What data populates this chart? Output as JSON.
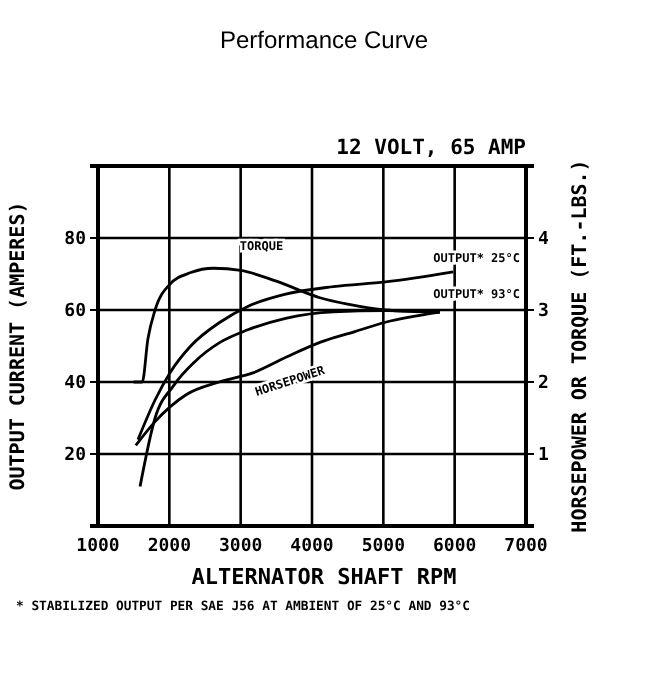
{
  "chart_data": {
    "type": "line",
    "title": "Performance Curve",
    "subtitle": "12 VOLT, 65 AMP",
    "xlabel": "ALTERNATOR SHAFT RPM",
    "ylabel": "OUTPUT CURRENT (AMPERES)",
    "y2label": "HORSEPOWER OR TORQUE (FT.-LBS.)",
    "annotations": [
      "* STABILIZED OUTPUT PER SAE J56 AT AMBIENT OF 25°C AND 93°C"
    ],
    "xlim": [
      1000,
      7000
    ],
    "xticks": [
      1000,
      2000,
      3000,
      4000,
      5000,
      6000,
      7000
    ],
    "ylim": [
      0,
      100
    ],
    "yticks": [
      {
        "value": 0,
        "label": null
      },
      20,
      40,
      60,
      80,
      {
        "value": 100,
        "label": null
      }
    ],
    "y2lim": [
      0,
      5
    ],
    "y2ticks": [
      1,
      2,
      3,
      4
    ],
    "grid": true,
    "marker": "none",
    "line_style": "solid",
    "series": [
      {
        "name": "TORQUE",
        "color": "#000000",
        "axis": "y2",
        "x": [
          1500,
          1620,
          1700,
          1800,
          2000,
          2300,
          2620,
          3000,
          3500,
          4110,
          4500,
          5030,
          5790
        ],
        "values": [
          2.0,
          2.0,
          2.6,
          3.0,
          3.35,
          3.52,
          3.58,
          3.55,
          3.4,
          3.17,
          3.08,
          3.0,
          2.97
        ]
      },
      {
        "name": "OUTPUT* 25°C",
        "color": "#000000",
        "axis": "y",
        "x": [
          1560,
          1800,
          2010,
          2300,
          2710,
          3100,
          3630,
          4300,
          5030,
          5980
        ],
        "values": [
          24,
          35,
          42.6,
          50,
          56.6,
          61,
          64.4,
          66.5,
          67.8,
          70.6
        ]
      },
      {
        "name": "OUTPUT* 93°C",
        "color": "#000000",
        "axis": "y",
        "x": [
          1590,
          1800,
          2060,
          2350,
          2710,
          3100,
          3630,
          4300,
          5030,
          5790
        ],
        "values": [
          11,
          30,
          39,
          45.5,
          51,
          54.5,
          57.7,
          59.5,
          59.8,
          59.4
        ]
      },
      {
        "name": "HORSEPOWER",
        "color": "#000000",
        "axis": "y2",
        "x": [
          1530,
          1800,
          2230,
          2700,
          3180,
          3650,
          4110,
          4600,
          5030,
          5790
        ],
        "values": [
          1.12,
          1.45,
          1.82,
          2.0,
          2.13,
          2.35,
          2.55,
          2.7,
          2.83,
          2.97
        ]
      }
    ]
  }
}
